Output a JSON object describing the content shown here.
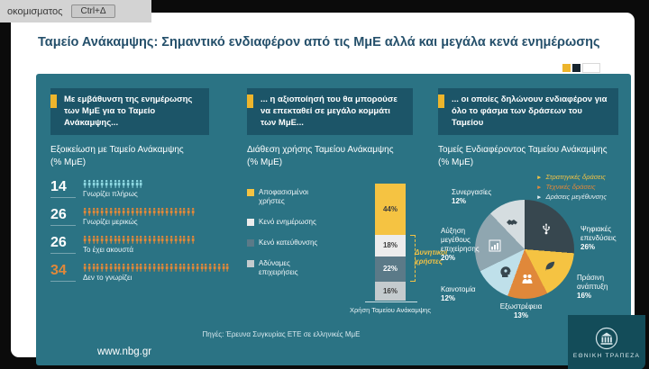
{
  "overlay": {
    "fragment_text": "οκομισματος",
    "shortcut_badge": "Ctrl+Δ"
  },
  "slide": {
    "title": "Ταμείο Ανάκαμψης: Σημαντικό ενδιαφέρον από τις ΜμΕ αλλά και μεγάλα κενά ενημέρωσης",
    "source_note": "Πηγές: Έρευνα Συγκυρίας ΕΤΕ σε ελληνικές ΜμΕ",
    "website": "www.nbg.gr",
    "bank_name": "ΕΘΝΙΚΗ ΤΡΑΠΕΖΑ",
    "accent_color": "#edb52c",
    "panel_color": "#2b7384",
    "header_box_color": "#1c5568"
  },
  "columns": [
    {
      "header": "Με εμβάθυνση της ενημέρωσης των ΜμΕ για το Ταμείο Ανάκαμψης...",
      "subtitle": "Εξοικείωση με Ταμείο Ανάκαμψης",
      "unit": "(% ΜμΕ)"
    },
    {
      "header": "... η αξιοποίησή του θα μπορούσε να επεκταθεί σε μεγάλο κομμάτι των ΜμΕ...",
      "subtitle": "Διάθεση χρήσης Ταμείου Ανάκαμψης",
      "unit": "(% ΜμΕ)"
    },
    {
      "header": "... οι οποίες δηλώνουν ενδιαφέρον για όλο το φάσμα των δράσεων του Ταμείου",
      "subtitle": "Τομείς Ενδιαφέροντος Ταμείου Ανάκαμψης",
      "unit": "(% ΜμΕ)"
    }
  ],
  "chart_data": [
    {
      "type": "bar",
      "subtype": "pictogram",
      "title": "Εξοικείωση με Ταμείο Ανάκαμψης (% ΜμΕ)",
      "categories": [
        "Γνωρίζει πλήρως",
        "Γνωρίζει μερικώς",
        "Το έχει ακουστά",
        "Δεν το γνωρίζει"
      ],
      "values": [
        14,
        26,
        26,
        34
      ],
      "icon": "person-icon",
      "icon_colors": [
        "#8ed8e2",
        "#e0883a",
        "#e0883a",
        "#e0883a"
      ],
      "value_colors": [
        "#ffffff",
        "#ffffff",
        "#ffffff",
        "#e0883a"
      ]
    },
    {
      "type": "bar",
      "stacked": true,
      "title": "Διάθεση χρήσης Ταμείου Ανάκαμψης (% ΜμΕ)",
      "xlabel": "Χρήση Ταμείου Ανάκαμψης",
      "categories": [
        "Χρήση Ταμείου Ανάκαμψης"
      ],
      "ylim": [
        0,
        100
      ],
      "series": [
        {
          "name": "Αποφασισμένοι χρήστες",
          "values": [
            44
          ],
          "color": "#f5c342",
          "label_color": "#3d3d3d"
        },
        {
          "name": "Κενό ενημέρωσης",
          "values": [
            18
          ],
          "color": "#ececec",
          "label_color": "#3d3d3d"
        },
        {
          "name": "Κενό κατεύθυνσης",
          "values": [
            22
          ],
          "color": "#5b7a88",
          "label_color": "#ffffff"
        },
        {
          "name": "Αδύναμες επιχειρήσεις",
          "values": [
            16
          ],
          "color": "#c4cbce",
          "label_color": "#3d3d3d"
        }
      ],
      "annotation": {
        "text": "Δυνητικοί χρήστες",
        "covers": [
          "Κενό ενημέρωσης",
          "Κενό κατεύθυνσης"
        ],
        "color": "#f2c245"
      }
    },
    {
      "type": "pie",
      "title": "Τομείς Ενδιαφέροντος Ταμείου Ανάκαμψης (% ΜμΕ)",
      "start_angle_deg": 0,
      "direction": "clockwise",
      "slices": [
        {
          "label": "Ψηφιακές επενδύσεις",
          "value": 26,
          "color": "#37474f",
          "icon": "usb-icon"
        },
        {
          "label": "Πράσινη ανάπτυξη",
          "value": 16,
          "color": "#f5c342",
          "icon": "green-growth-icon"
        },
        {
          "label": "Εξωστρέφεια",
          "value": 13,
          "color": "#e0883a",
          "icon": "people-icon"
        },
        {
          "label": "Καινοτομία",
          "value": 12,
          "color": "#bfe0ea",
          "icon": "innovation-icon"
        },
        {
          "label": "Αύξηση μεγέθους επιχείρησης",
          "value": 20,
          "color": "#8fa6b0",
          "icon": "growth-chart-icon"
        },
        {
          "label": "Συνεργασίες",
          "value": 12,
          "color": "#d5dde0",
          "icon": "handshake-icon"
        }
      ],
      "legend": [
        {
          "label": "Στρατηγικές δράσεις",
          "color": "#f2c245"
        },
        {
          "label": "Τεχνικές δράσεις",
          "color": "#e0883a"
        },
        {
          "label": "Δράσεις μεγέθυνσης",
          "color": "#e8eef0"
        }
      ],
      "legend_position": "top-right"
    }
  ]
}
